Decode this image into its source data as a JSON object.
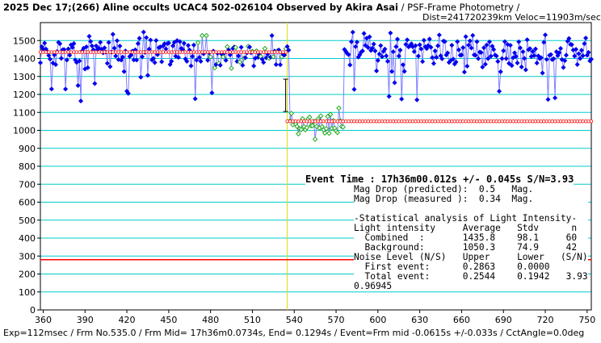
{
  "title": {
    "main": "2025 Dec 17;(266) Aline occults UCAC4 502-026104 Observed by Akira Asai",
    "method": " / PSF-Frame Photometry /",
    "line2": "Dist=241720239km Veloc=11903m/sec"
  },
  "footer": "Exp=112msec / Frm No.535.0 / Frm Mid= 17h36m0.0734s, End= 0.1294s / Event=Frm mid -0.0615s +/-0.033s / CctAngle=0.0deg",
  "event_text": "Event Time : 17h36m00.012s  +/- 0.045s  S/N=3.93",
  "stats_lines": [
    "Mag Drop (predicted):  0.5   Mag.",
    "Mag Drop (measured ):  0.34  Mag.",
    "",
    "-Statistical analysis of Light Intensity-",
    "Light intensity     Average   Stdv      n",
    "  Combined  :       1435.8    98.1     60",
    "  Background:       1050.3    74.9     42",
    "Noise Level (N/S)   Upper     Lower   (S/N)",
    "  First event:      0.2863    0.0000",
    "  Total event:      0.2544    0.1942   3.93",
    "0.96945"
  ],
  "colors": {
    "gridline": "#00cccc",
    "baseline": "#ff0000",
    "series_main": "#0000ee",
    "series_occ": "#22aa22",
    "line": "#8080ff",
    "event_marker": "#dddd00"
  },
  "chart_data": {
    "type": "scatter",
    "xlim": [
      358,
      753
    ],
    "ylim": [
      0,
      1600
    ],
    "xticks": [
      360,
      390,
      420,
      450,
      480,
      510,
      540,
      570,
      600,
      630,
      660,
      690,
      720,
      750
    ],
    "yticks": [
      0,
      100,
      200,
      300,
      400,
      500,
      600,
      700,
      800,
      900,
      1000,
      1100,
      1200,
      1300,
      1400,
      1500
    ],
    "event_frame": 535,
    "occ_start": 537,
    "occ_end": 575,
    "baseline_high": {
      "value": 1435.8,
      "from": 358,
      "to": 535
    },
    "baseline_low": {
      "value": 1050.3,
      "from": 535,
      "to": 753
    },
    "baseline_ref": 280,
    "event_error_bar": [
      1285,
      1105
    ],
    "grid": true
  }
}
